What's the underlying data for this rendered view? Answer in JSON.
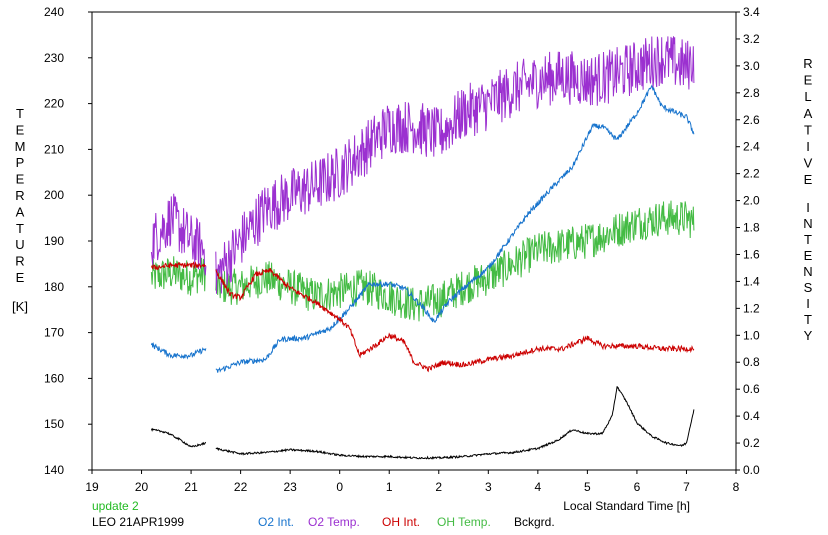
{
  "chart_data": {
    "type": "line",
    "xlabel": "Local Standard Time [h]",
    "x_ticks": [
      "19",
      "20",
      "21",
      "22",
      "23",
      "0",
      "1",
      "2",
      "3",
      "4",
      "5",
      "6",
      "7",
      "8"
    ],
    "xlim": [
      19,
      32
    ],
    "y_left": {
      "label_letters": [
        "T",
        "E",
        "M",
        "P",
        "E",
        "R",
        "A",
        "T",
        "U",
        "R",
        "E"
      ],
      "unit": "[K]",
      "ticks": [
        "140",
        "150",
        "160",
        "170",
        "180",
        "190",
        "200",
        "210",
        "220",
        "230",
        "240"
      ],
      "ylim": [
        140,
        240
      ]
    },
    "y_right": {
      "label_word1_letters": [
        "R",
        "E",
        "L",
        "A",
        "T",
        "I",
        "V",
        "E"
      ],
      "label_word2_letters": [
        "I",
        "N",
        "T",
        "E",
        "N",
        "S",
        "I",
        "T",
        "Y"
      ],
      "ticks": [
        "0.0",
        "0.2",
        "0.4",
        "0.6",
        "0.8",
        "1.0",
        "1.2",
        "1.4",
        "1.6",
        "1.8",
        "2.0",
        "2.2",
        "2.4",
        "2.6",
        "2.8",
        "3.0",
        "3.2",
        "3.4"
      ],
      "ylim": [
        0,
        3.4
      ]
    },
    "annotation_update": "update 2",
    "annotation_station": "LEO 21APR1999",
    "legend_placement": "bottom",
    "series": [
      {
        "name": "O2 Int.",
        "color": "#1874cd",
        "axis": "right",
        "noise": 0.02,
        "points": [
          [
            20.2,
            0.93
          ],
          [
            20.6,
            0.85
          ],
          [
            21.0,
            0.85
          ],
          [
            21.3,
            0.9
          ],
          [
            null,
            null
          ],
          [
            21.5,
            0.73
          ],
          [
            22.0,
            0.8
          ],
          [
            22.5,
            0.82
          ],
          [
            22.8,
            0.97
          ],
          [
            23.3,
            0.98
          ],
          [
            23.8,
            1.05
          ],
          [
            24.2,
            1.2
          ],
          [
            24.6,
            1.38
          ],
          [
            25.0,
            1.38
          ],
          [
            25.3,
            1.35
          ],
          [
            25.7,
            1.2
          ],
          [
            25.9,
            1.1
          ],
          [
            26.2,
            1.25
          ],
          [
            26.6,
            1.38
          ],
          [
            27.0,
            1.5
          ],
          [
            27.4,
            1.7
          ],
          [
            27.8,
            1.9
          ],
          [
            28.3,
            2.1
          ],
          [
            28.7,
            2.25
          ],
          [
            29.1,
            2.55
          ],
          [
            29.3,
            2.55
          ],
          [
            29.6,
            2.45
          ],
          [
            30.0,
            2.65
          ],
          [
            30.3,
            2.85
          ],
          [
            30.5,
            2.7
          ],
          [
            30.8,
            2.65
          ],
          [
            31.0,
            2.62
          ],
          [
            31.15,
            2.5
          ]
        ]
      },
      {
        "name": "O2 Temp.",
        "color": "#9b30d0",
        "axis": "left",
        "noise": 6,
        "points": [
          [
            20.2,
            190
          ],
          [
            20.6,
            195
          ],
          [
            21.0,
            190
          ],
          [
            21.3,
            188
          ],
          [
            null,
            null
          ],
          [
            21.5,
            182
          ],
          [
            22.0,
            190
          ],
          [
            22.5,
            197
          ],
          [
            23.0,
            200
          ],
          [
            23.5,
            202
          ],
          [
            24.0,
            205
          ],
          [
            24.5,
            210
          ],
          [
            25.0,
            215
          ],
          [
            25.5,
            215
          ],
          [
            26.0,
            213
          ],
          [
            26.5,
            218
          ],
          [
            27.0,
            220
          ],
          [
            27.5,
            223
          ],
          [
            28.0,
            225
          ],
          [
            28.5,
            226
          ],
          [
            29.0,
            225
          ],
          [
            29.5,
            226
          ],
          [
            30.0,
            228
          ],
          [
            30.5,
            230
          ],
          [
            31.0,
            228
          ],
          [
            31.15,
            230
          ]
        ]
      },
      {
        "name": "OH Int.",
        "color": "#cc0000",
        "axis": "right",
        "noise": 0.02,
        "points": [
          [
            20.2,
            1.5
          ],
          [
            20.6,
            1.52
          ],
          [
            21.0,
            1.52
          ],
          [
            21.3,
            1.52
          ],
          [
            null,
            null
          ],
          [
            21.5,
            1.48
          ],
          [
            21.8,
            1.3
          ],
          [
            22.0,
            1.28
          ],
          [
            22.3,
            1.45
          ],
          [
            22.6,
            1.48
          ],
          [
            23.0,
            1.35
          ],
          [
            23.5,
            1.25
          ],
          [
            24.0,
            1.12
          ],
          [
            24.2,
            1.05
          ],
          [
            24.4,
            0.85
          ],
          [
            24.7,
            0.92
          ],
          [
            25.0,
            1.0
          ],
          [
            25.3,
            0.95
          ],
          [
            25.5,
            0.8
          ],
          [
            25.8,
            0.75
          ],
          [
            26.1,
            0.8
          ],
          [
            26.5,
            0.78
          ],
          [
            27.0,
            0.82
          ],
          [
            27.5,
            0.85
          ],
          [
            28.0,
            0.9
          ],
          [
            28.5,
            0.9
          ],
          [
            29.0,
            0.98
          ],
          [
            29.3,
            0.92
          ],
          [
            29.6,
            0.92
          ],
          [
            30.0,
            0.92
          ],
          [
            30.5,
            0.9
          ],
          [
            31.0,
            0.9
          ],
          [
            31.15,
            0.9
          ]
        ]
      },
      {
        "name": "OH Temp.",
        "color": "#44bb44",
        "axis": "left",
        "noise": 4,
        "points": [
          [
            20.2,
            182
          ],
          [
            20.6,
            183
          ],
          [
            21.0,
            182
          ],
          [
            21.3,
            183
          ],
          [
            null,
            null
          ],
          [
            21.5,
            180
          ],
          [
            22.0,
            180
          ],
          [
            22.5,
            182
          ],
          [
            23.0,
            180
          ],
          [
            23.5,
            178
          ],
          [
            24.0,
            179
          ],
          [
            24.5,
            180
          ],
          [
            25.0,
            178
          ],
          [
            25.5,
            176
          ],
          [
            26.0,
            177
          ],
          [
            26.5,
            180
          ],
          [
            27.0,
            182
          ],
          [
            27.5,
            185
          ],
          [
            28.0,
            188
          ],
          [
            28.5,
            189
          ],
          [
            29.0,
            190
          ],
          [
            29.5,
            192
          ],
          [
            30.0,
            194
          ],
          [
            30.5,
            195
          ],
          [
            31.0,
            195
          ],
          [
            31.15,
            194
          ]
        ]
      },
      {
        "name": "Bckgrd.",
        "color": "#000000",
        "axis": "right",
        "noise": 0.007,
        "points": [
          [
            20.2,
            0.3
          ],
          [
            20.5,
            0.28
          ],
          [
            20.8,
            0.22
          ],
          [
            21.0,
            0.17
          ],
          [
            21.3,
            0.2
          ],
          [
            null,
            null
          ],
          [
            21.5,
            0.16
          ],
          [
            22.0,
            0.12
          ],
          [
            22.5,
            0.13
          ],
          [
            23.0,
            0.15
          ],
          [
            23.5,
            0.14
          ],
          [
            24.0,
            0.11
          ],
          [
            24.5,
            0.1
          ],
          [
            25.0,
            0.1
          ],
          [
            25.5,
            0.09
          ],
          [
            26.0,
            0.09
          ],
          [
            26.5,
            0.1
          ],
          [
            27.0,
            0.12
          ],
          [
            27.5,
            0.13
          ],
          [
            28.0,
            0.16
          ],
          [
            28.4,
            0.22
          ],
          [
            28.7,
            0.3
          ],
          [
            29.0,
            0.27
          ],
          [
            29.3,
            0.27
          ],
          [
            29.5,
            0.4
          ],
          [
            29.6,
            0.62
          ],
          [
            29.8,
            0.5
          ],
          [
            30.0,
            0.35
          ],
          [
            30.3,
            0.25
          ],
          [
            30.6,
            0.2
          ],
          [
            30.9,
            0.18
          ],
          [
            31.0,
            0.2
          ],
          [
            31.15,
            0.45
          ]
        ]
      }
    ]
  }
}
